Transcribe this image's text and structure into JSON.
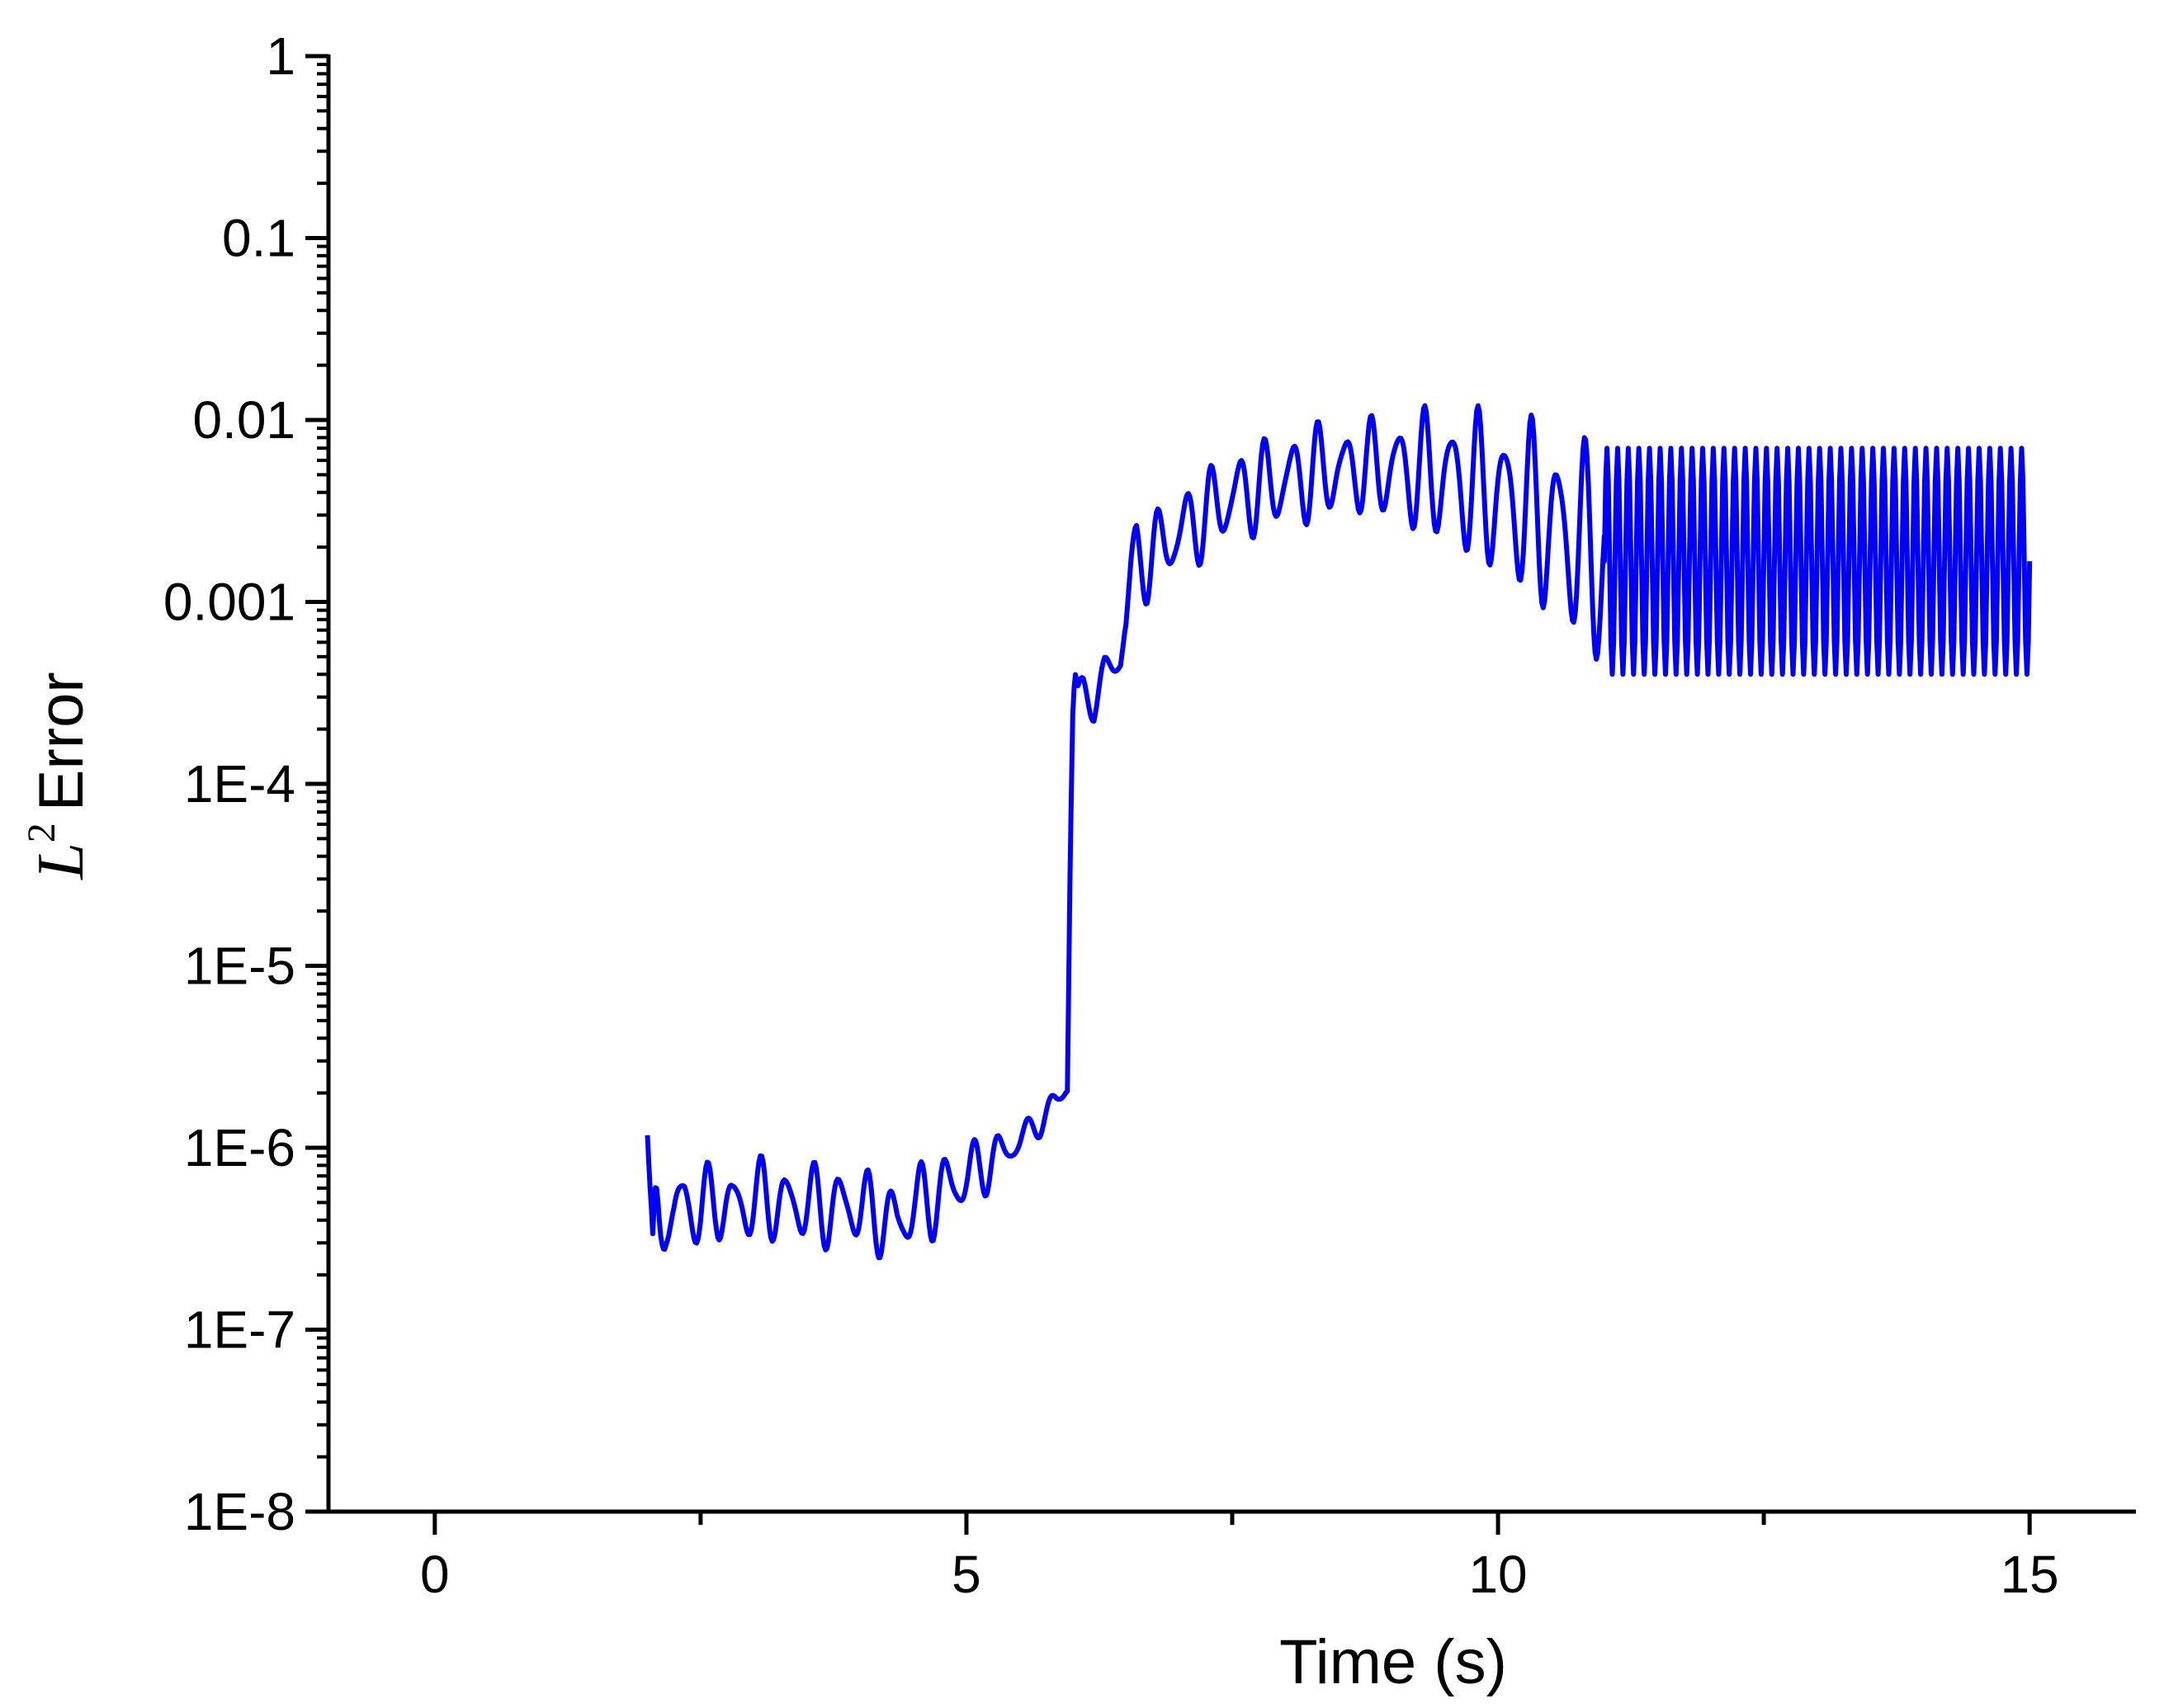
{
  "chart_data": {
    "type": "line",
    "title": "",
    "xlabel": "Time (s)",
    "ylabel": {
      "symbol": "L",
      "superscript": "2",
      "text": "Error"
    },
    "xlim": [
      -1,
      16
    ],
    "ylim": [
      1e-08,
      1
    ],
    "yscale": "log",
    "grid": false,
    "legend": "none",
    "line_color": "#0000ff",
    "x_ticks": [
      {
        "value": 0,
        "label": "0"
      },
      {
        "value": 5,
        "label": "5"
      },
      {
        "value": 10,
        "label": "10"
      },
      {
        "value": 15,
        "label": "15"
      }
    ],
    "x_minor_ticks": [
      2.5,
      7.5,
      12.5
    ],
    "y_ticks": [
      {
        "value": 1,
        "label": "1"
      },
      {
        "value": 0.1,
        "label": "0.1"
      },
      {
        "value": 0.01,
        "label": "0.01"
      },
      {
        "value": 0.001,
        "label": "0.001"
      },
      {
        "value": 0.0001,
        "label": "1E-4"
      },
      {
        "value": 1e-05,
        "label": "1E-5"
      },
      {
        "value": 1e-06,
        "label": "1E-6"
      },
      {
        "value": 1e-07,
        "label": "1E-7"
      },
      {
        "value": 1e-08,
        "label": "1E-8"
      }
    ],
    "series": [
      {
        "x": [
          2.0,
          2.02,
          2.05,
          2.08,
          2.12,
          2.18,
          2.25,
          2.35,
          2.5,
          2.65,
          2.8,
          2.95,
          3.1,
          3.3,
          3.5,
          3.7,
          3.9,
          4.05,
          4.2,
          4.35,
          4.5,
          4.65,
          4.75,
          4.9,
          5.1,
          5.3,
          5.5,
          5.7,
          5.85,
          5.95,
          5.98,
          6.0,
          6.02,
          6.05,
          6.1,
          6.2,
          6.3,
          6.45,
          6.55,
          6.6,
          6.7,
          6.9,
          7.1,
          7.3,
          7.5,
          7.8,
          8.1,
          8.4,
          8.7,
          9.0,
          9.3,
          9.6,
          9.9,
          10.2,
          10.4,
          10.6,
          10.8,
          10.95,
          11.0
        ],
        "y": [
          1.3e-06,
          5.5e-07,
          2e-07,
          4e-07,
          3.5e-07,
          4.8e-07,
          4.2e-07,
          5e-07,
          4.5e-07,
          5.2e-07,
          4.6e-07,
          5e-07,
          5.3e-07,
          4.8e-07,
          5e-07,
          4.6e-07,
          4.9e-07,
          4.5e-07,
          4.2e-07,
          3.8e-07,
          4.8e-07,
          5.2e-07,
          5.5e-07,
          6.5e-07,
          7.5e-07,
          9e-07,
          1.1e-06,
          1.4e-06,
          1.8e-06,
          2.3e-06,
          6e-05,
          0.00025,
          0.0004,
          0.0003,
          0.00032,
          0.00028,
          0.0004,
          0.0005,
          0.0013,
          0.0018,
          0.0017,
          0.0022,
          0.0026,
          0.0032,
          0.0038,
          0.0043,
          0.0048,
          0.0053,
          0.0055,
          0.0054,
          0.0051,
          0.0047,
          0.004,
          0.0034,
          0.0029,
          0.0024,
          0.002,
          0.0018,
          0.0016
        ]
      }
    ],
    "oscillating_segment": {
      "x_start": 11.0,
      "x_end": 15.0,
      "period": 0.1,
      "y_max": 0.007,
      "y_min": 0.0004
    }
  }
}
